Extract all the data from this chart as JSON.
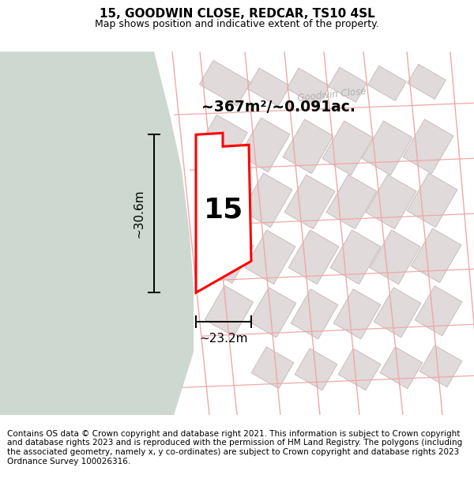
{
  "title": "15, GOODWIN CLOSE, REDCAR, TS10 4SL",
  "subtitle": "Map shows position and indicative extent of the property.",
  "footer": "Contains OS data © Crown copyright and database right 2021. This information is subject to Crown copyright and database rights 2023 and is reproduced with the permission of HM Land Registry. The polygons (including the associated geometry, namely x, y co-ordinates) are subject to Crown copyright and database rights 2023 Ordnance Survey 100026316.",
  "area_label": "~367m²/~0.091ac.",
  "label_number": "15",
  "dim_height": "~30.6m",
  "dim_width": "~23.2m",
  "road_label": "Goodwin Close",
  "map_bg": "#f5f0ee",
  "white_bg": "#ffffff",
  "green_color": "#ccd8d0",
  "plot_fill": "#ffffff",
  "plot_edge": "#ff0000",
  "road_line_color": "#f0a8a8",
  "building_fill": "#e0dada",
  "building_edge": "#ccbcbc",
  "road_fill": "#ffffff",
  "title_fontsize": 11,
  "subtitle_fontsize": 9,
  "footer_fontsize": 7.5
}
